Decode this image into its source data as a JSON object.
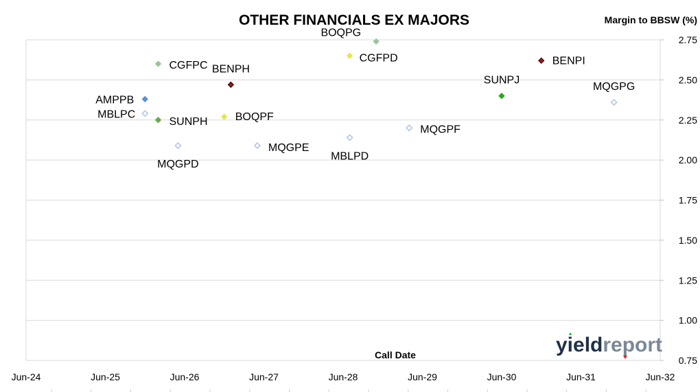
{
  "chart_data": {
    "type": "scatter",
    "title": "OTHER FINANCIALS EX MAJORS",
    "xlabel": "Call Date",
    "ylabel": "Margin to BBSW (%)",
    "xlim": [
      "Jun-24",
      "Jun-32"
    ],
    "x_ticks": [
      "Jun-24",
      "Jun-25",
      "Jun-26",
      "Jun-27",
      "Jun-28",
      "Jun-29",
      "Jun-30",
      "Jun-31",
      "Jun-32"
    ],
    "ylim": [
      0.75,
      2.75
    ],
    "y_ticks": [
      "0.75",
      "1.00",
      "1.25",
      "1.50",
      "1.75",
      "2.00",
      "2.25",
      "2.50",
      "2.75"
    ],
    "y_axis_side": "right",
    "grid": true,
    "points": [
      {
        "label": "AMPPB",
        "x": "2025-12",
        "y": 2.38,
        "color": "#5b8fd8",
        "filled": true
      },
      {
        "label": "MBLPC",
        "x": "2025-12",
        "y": 2.29,
        "color": "#b4c7e7",
        "filled": false
      },
      {
        "label": "CGFPC",
        "x": "2026-02",
        "y": 2.6,
        "color": "#9bc49b",
        "filled": true
      },
      {
        "label": "SUNPH",
        "x": "2026-02",
        "y": 2.25,
        "color": "#6aa84f",
        "filled": true
      },
      {
        "label": "MQGPD",
        "x": "2026-05",
        "y": 2.09,
        "color": "#b4c7e7",
        "filled": false
      },
      {
        "label": "BENPH",
        "x": "2027-01",
        "y": 2.47,
        "color": "#8b1a1a",
        "filled": true
      },
      {
        "label": "BOQPF",
        "x": "2026-12",
        "y": 2.27,
        "color": "#e6e64c",
        "filled": true
      },
      {
        "label": "MQGPE",
        "x": "2027-05",
        "y": 2.09,
        "color": "#b4c7e7",
        "filled": false
      },
      {
        "label": "BOQPG",
        "x": "2028-11",
        "y": 2.74,
        "color": "#9bc49b",
        "filled": true
      },
      {
        "label": "CGFPD",
        "x": "2028-07",
        "y": 2.65,
        "color": "#e6e64c",
        "filled": true
      },
      {
        "label": "MBLPD",
        "x": "2028-07",
        "y": 2.14,
        "color": "#b4c7e7",
        "filled": false
      },
      {
        "label": "MQGPF",
        "x": "2029-04",
        "y": 2.2,
        "color": "#b4c7e7",
        "filled": false
      },
      {
        "label": "SUNPJ",
        "x": "2030-06",
        "y": 2.4,
        "color": "#1faa1f",
        "filled": true
      },
      {
        "label": "BENPI",
        "x": "2030-12",
        "y": 2.62,
        "color": "#a01818",
        "filled": true
      },
      {
        "label": "MQGPG",
        "x": "2031-11",
        "y": 2.36,
        "color": "#b4c7e7",
        "filled": false
      }
    ]
  },
  "logo": {
    "part1": "yield",
    "part2": "report"
  }
}
